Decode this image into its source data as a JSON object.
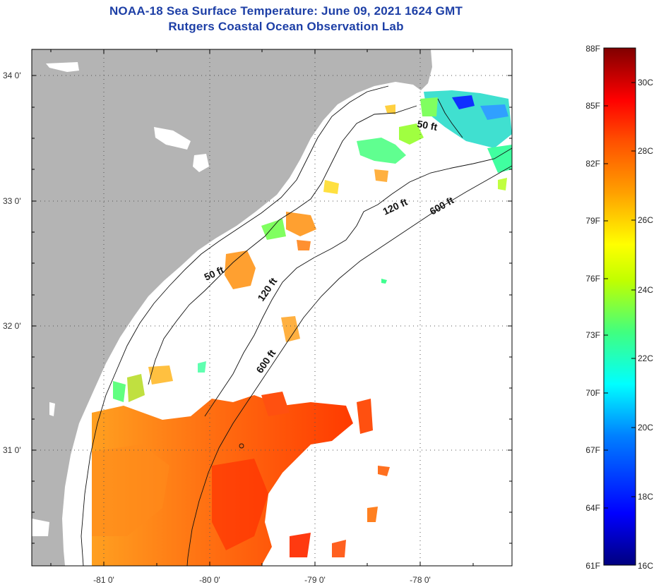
{
  "title": {
    "line1": "NOAA-18 Sea Surface Temperature:  June 09, 2021 1624 GMT",
    "line2": "Rutgers Coastal Ocean Observation Lab"
  },
  "map": {
    "lat_ticks": [
      "34 0'",
      "33 0'",
      "32 0'",
      "31 0'"
    ],
    "lon_ticks": [
      "-81 0'",
      "-80 0'",
      "-79 0'",
      "-78 0'"
    ],
    "contours": [
      {
        "label": "50 ft"
      },
      {
        "label": "120 ft"
      },
      {
        "label": "600 ft"
      },
      {
        "label": "50 ft"
      },
      {
        "label": "120 ft"
      },
      {
        "label": "600 ft"
      }
    ]
  },
  "colorbar": {
    "fahrenheit": [
      "88F",
      "85F",
      "82F",
      "79F",
      "76F",
      "73F",
      "70F",
      "67F",
      "64F",
      "61F"
    ],
    "celsius": [
      "30C",
      "28C",
      "26C",
      "24C",
      "22C",
      "20C",
      "18C",
      "16C"
    ],
    "colors": [
      "#7f0000",
      "#c80000",
      "#ff2000",
      "#ff7000",
      "#ffb000",
      "#ffff00",
      "#a0ff40",
      "#40ffc0",
      "#00e0ff",
      "#0080ff",
      "#0020ff",
      "#00008f"
    ]
  }
}
